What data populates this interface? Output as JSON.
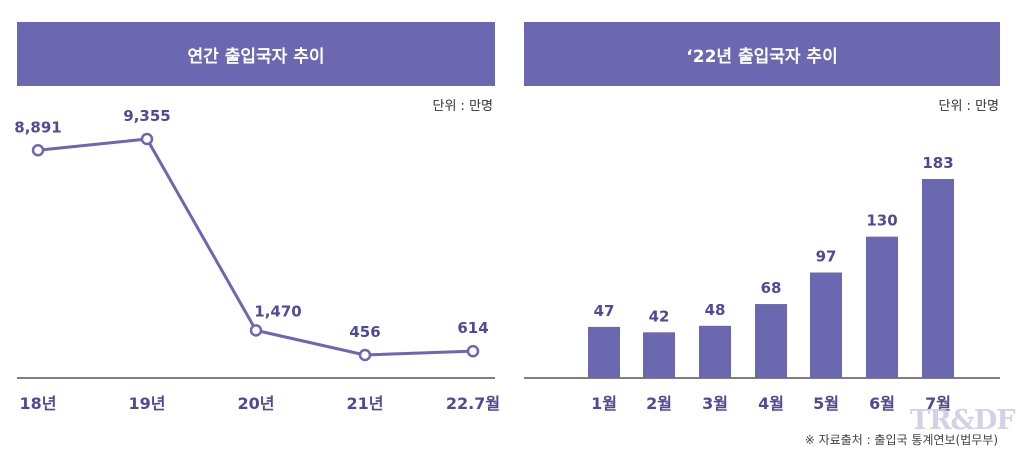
{
  "colors": {
    "accent": "#6b67b0",
    "axis": "#333333",
    "label": "#4e4b96"
  },
  "charts": {
    "left": {
      "header": "연간 출입국자 추이",
      "unit": "단위 : 만명"
    },
    "right": {
      "header": "‘22년 출입국자 추이",
      "unit": "단위 : 만명"
    }
  },
  "source": "※ 자료출처 : 출입국 통계연보(법무부)",
  "watermark": "TR&DF",
  "chart_data": [
    {
      "type": "line",
      "title": "연간 출입국자 추이",
      "unit": "단위 : 만명",
      "categories": [
        "18년",
        "19년",
        "20년",
        "21년",
        "22.7월"
      ],
      "values": [
        8891,
        9355,
        1470,
        456,
        614
      ],
      "value_labels": [
        "8,891",
        "9,355",
        "1,470",
        "456",
        "614"
      ],
      "grid": false
    },
    {
      "type": "bar",
      "title": "‘22년 출입국자 추이",
      "unit": "단위 : 만명",
      "categories": [
        "1월",
        "2월",
        "3월",
        "4월",
        "5월",
        "6월",
        "7월"
      ],
      "values": [
        47,
        42,
        48,
        68,
        97,
        130,
        183
      ],
      "grid": false
    }
  ]
}
